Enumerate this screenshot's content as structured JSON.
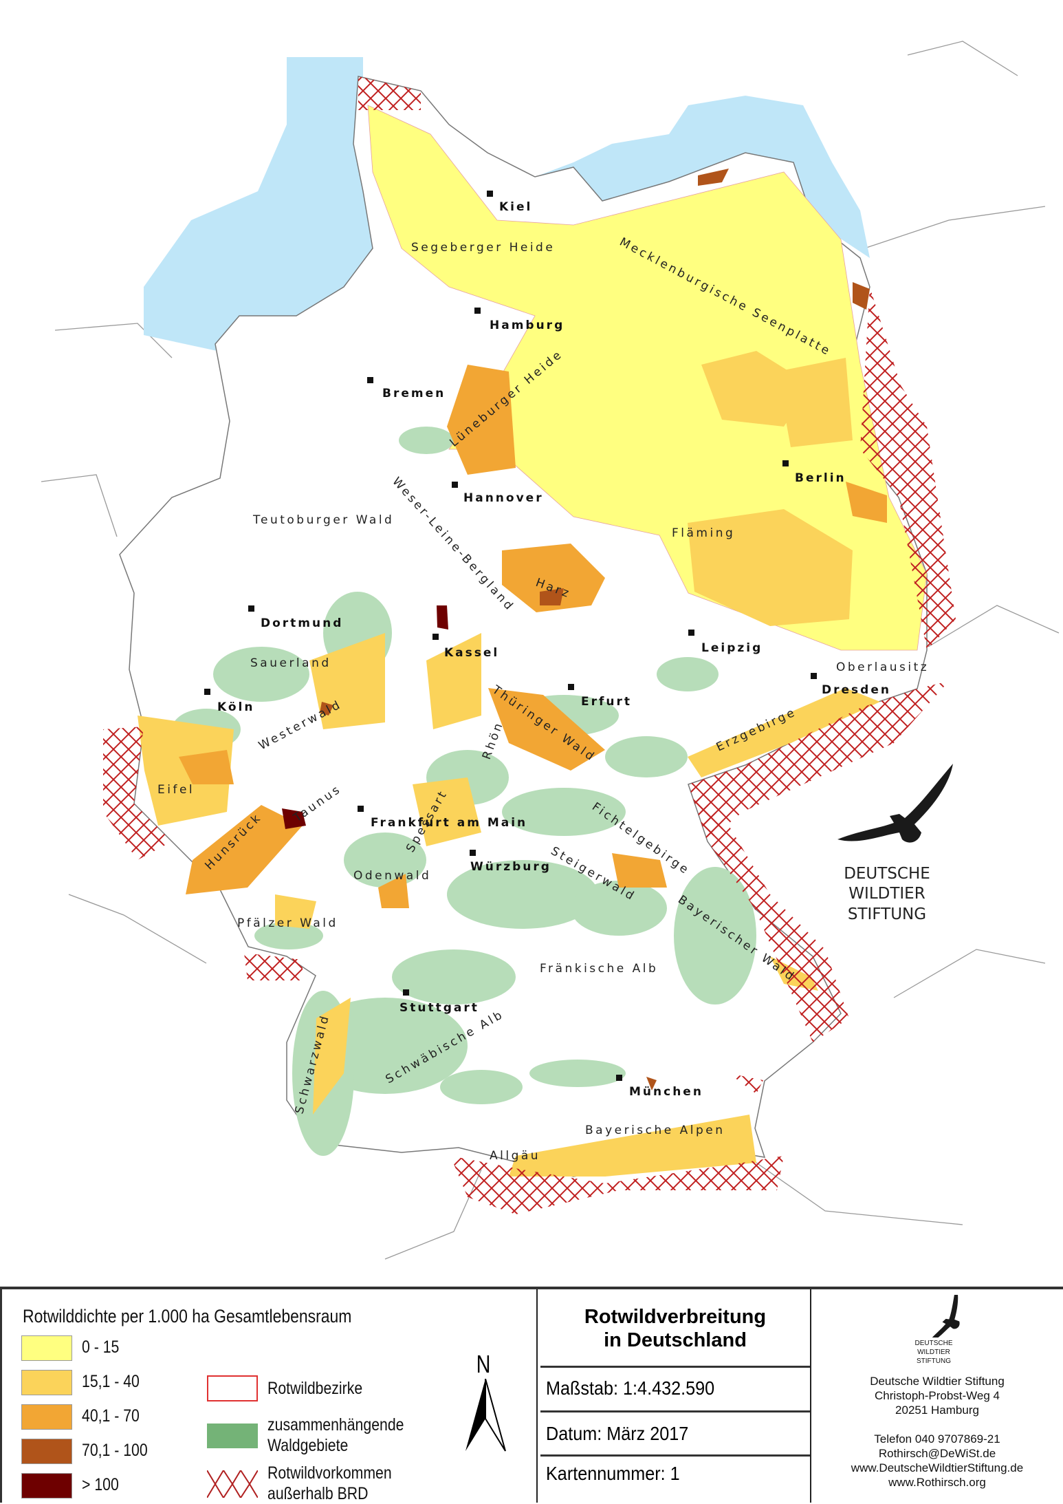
{
  "colors": {
    "sea": "#BFE6F8",
    "density_0_15": "#FFFF80",
    "density_15_40": "#FBD35A",
    "density_40_70": "#F2A634",
    "density_70_100": "#B0541A",
    "density_gt_100": "#6E0000",
    "forest": "#B7DDB9",
    "district_border": "#E03030",
    "hatch": "#C02020"
  },
  "map": {
    "cities": [
      {
        "name": "Kiel"
      },
      {
        "name": "Hamburg"
      },
      {
        "name": "Bremen"
      },
      {
        "name": "Hannover"
      },
      {
        "name": "Berlin"
      },
      {
        "name": "Dortmund"
      },
      {
        "name": "Kassel"
      },
      {
        "name": "Leipzig"
      },
      {
        "name": "Dresden"
      },
      {
        "name": "Erfurt"
      },
      {
        "name": "Köln"
      },
      {
        "name": "Frankfurt am Main"
      },
      {
        "name": "Würzburg"
      },
      {
        "name": "Stuttgart"
      },
      {
        "name": "München"
      }
    ],
    "regions": [
      "Segeberger Heide",
      "Mecklenburgische Seenplatte",
      "Lüneburger Heide",
      "Teutoburger Wald",
      "Weser-Leine-Bergland",
      "Fläming",
      "Harz",
      "Oberlausitz",
      "Sauerland",
      "Westerwald",
      "Thüringer Wald",
      "Rhön",
      "Erzgebirge",
      "Eifel",
      "Taunus",
      "Spessart",
      "Fichtelgebirge",
      "Hunsrück",
      "Steigerwald",
      "Odenwald",
      "Bayerischer Wald",
      "Pfälzer Wald",
      "Fränkische Alb",
      "Schwäbische Alb",
      "Schwarzwald",
      "Bayerische Alpen",
      "Allgäu"
    ],
    "logo": {
      "line1": "DEUTSCHE",
      "line2": "WILDTIER",
      "line3": "STIFTUNG"
    }
  },
  "legend": {
    "title": "Rotwilddichte per 1.000 ha Gesamtlebensraum",
    "classes": [
      "0 - 15",
      "15,1 - 40",
      "40,1 - 70",
      "70,1 - 100",
      "> 100"
    ],
    "districts": "Rotwildbezirke",
    "forest_line1": "zusammenhängende",
    "forest_line2": "Waldgebiete",
    "outside_line1": "Rotwildvorkommen",
    "outside_line2": "außerhalb BRD",
    "north": "N"
  },
  "titleblock": {
    "title_line1": "Rotwildverbreitung",
    "title_line2": "in Deutschland",
    "scale": "Maßstab: 1:4.432.590",
    "date": "Datum: März 2017",
    "map_number": "Kartennummer: 1"
  },
  "publisher": {
    "logo_line1": "DEUTSCHE",
    "logo_line2": "WILDTIER",
    "logo_line3": "STIFTUNG",
    "name": "Deutsche Wildtier Stiftung",
    "street": "Christoph-Probst-Weg 4",
    "city": "20251 Hamburg",
    "phone": "Telefon 040 9707869-21",
    "email": "Rothirsch@DeWiSt.de",
    "web1": "www.DeutscheWildtierStiftung.de",
    "web2": "www.Rothirsch.org"
  }
}
